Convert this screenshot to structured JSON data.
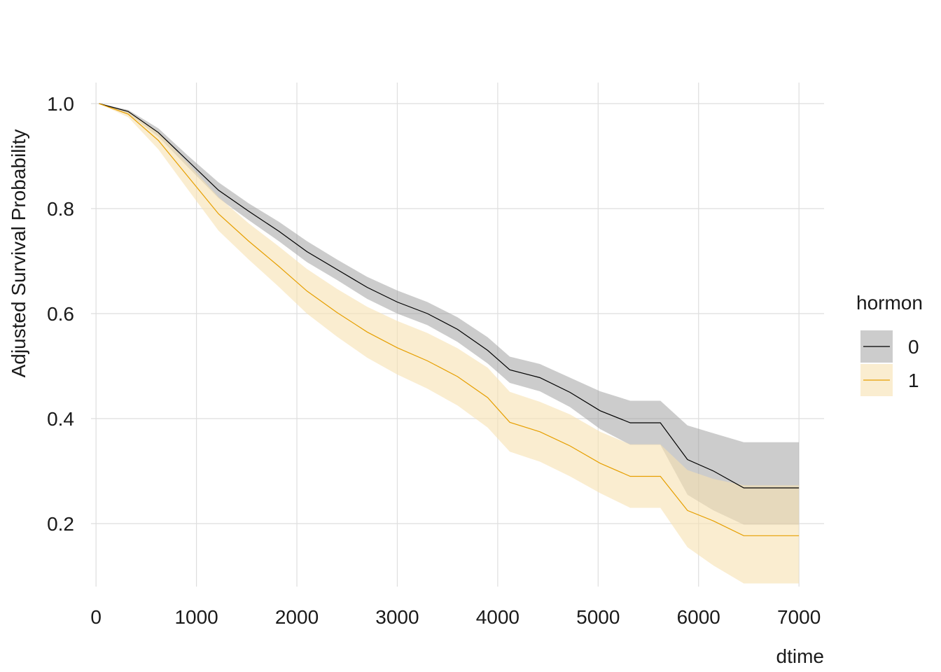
{
  "chart_data": {
    "type": "line",
    "xlabel": "dtime",
    "ylabel": "Adjusted Survival Probability",
    "xlim": [
      -50,
      7250
    ],
    "ylim": [
      0.08,
      1.04
    ],
    "xticks": [
      0,
      1000,
      2000,
      3000,
      4000,
      5000,
      6000,
      7000
    ],
    "yticks": [
      0.2,
      0.4,
      0.6,
      0.8,
      1.0
    ],
    "ytick_labels": [
      "0.2",
      "0.4",
      "0.6",
      "0.8",
      "1.0"
    ],
    "xtick_labels": [
      "0",
      "1000",
      "2000",
      "3000",
      "4000",
      "5000",
      "6000",
      "7000"
    ],
    "grid": true,
    "legend": {
      "title": "hormon",
      "position": "right"
    },
    "series": [
      {
        "name": "0",
        "color": "#000000",
        "band_color": "#999999",
        "x": [
          30,
          320,
          620,
          920,
          1220,
          1520,
          1820,
          2100,
          2400,
          2700,
          3000,
          3300,
          3600,
          3900,
          4120,
          4420,
          4720,
          5020,
          5320,
          5620,
          5890,
          6150,
          6450,
          7000
        ],
        "y": [
          1.0,
          0.985,
          0.945,
          0.89,
          0.835,
          0.795,
          0.757,
          0.718,
          0.684,
          0.65,
          0.622,
          0.6,
          0.57,
          0.53,
          0.493,
          0.478,
          0.45,
          0.415,
          0.392,
          0.392,
          0.322,
          0.3,
          0.268,
          0.268
        ],
        "lower": [
          1.0,
          0.981,
          0.937,
          0.878,
          0.82,
          0.778,
          0.738,
          0.698,
          0.664,
          0.628,
          0.6,
          0.578,
          0.546,
          0.505,
          0.468,
          0.452,
          0.422,
          0.38,
          0.35,
          0.35,
          0.255,
          0.225,
          0.198,
          0.198
        ],
        "upper": [
          1.0,
          0.988,
          0.953,
          0.9,
          0.85,
          0.81,
          0.775,
          0.738,
          0.703,
          0.67,
          0.644,
          0.622,
          0.593,
          0.555,
          0.518,
          0.504,
          0.478,
          0.452,
          0.434,
          0.434,
          0.387,
          0.372,
          0.355,
          0.355
        ]
      },
      {
        "name": "1",
        "color": "#E69F00",
        "band_color": "#F7E1B0",
        "x": [
          30,
          320,
          620,
          920,
          1220,
          1520,
          1820,
          2100,
          2400,
          2700,
          3000,
          3300,
          3600,
          3900,
          4120,
          4420,
          4720,
          5020,
          5320,
          5620,
          5890,
          6150,
          6450,
          7000
        ],
        "y": [
          1.0,
          0.98,
          0.93,
          0.86,
          0.79,
          0.738,
          0.69,
          0.643,
          0.602,
          0.565,
          0.535,
          0.51,
          0.48,
          0.44,
          0.393,
          0.375,
          0.348,
          0.315,
          0.29,
          0.29,
          0.225,
          0.205,
          0.177,
          0.177
        ],
        "lower": [
          1.0,
          0.974,
          0.913,
          0.835,
          0.758,
          0.703,
          0.651,
          0.6,
          0.556,
          0.516,
          0.484,
          0.457,
          0.425,
          0.383,
          0.337,
          0.318,
          0.29,
          0.258,
          0.23,
          0.23,
          0.155,
          0.12,
          0.086,
          0.086
        ],
        "upper": [
          1.0,
          0.986,
          0.946,
          0.885,
          0.822,
          0.772,
          0.728,
          0.685,
          0.647,
          0.613,
          0.586,
          0.563,
          0.534,
          0.497,
          0.451,
          0.432,
          0.408,
          0.375,
          0.351,
          0.351,
          0.302,
          0.285,
          0.273,
          0.273
        ]
      }
    ]
  }
}
